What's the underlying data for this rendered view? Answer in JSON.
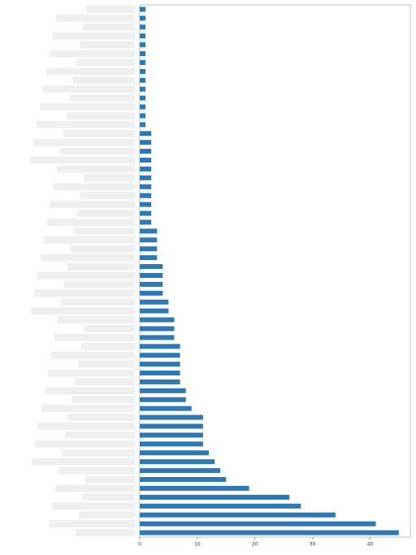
{
  "chart_data": {
    "type": "barh",
    "categories": [
      null,
      null,
      null,
      null,
      null,
      null,
      null,
      null,
      null,
      null,
      null,
      null,
      null,
      null,
      null,
      null,
      null,
      null,
      null,
      null,
      null,
      null,
      null,
      null,
      null,
      null,
      null,
      null,
      null,
      null,
      null,
      null,
      null,
      null,
      null,
      null,
      null,
      null,
      null,
      null,
      null,
      null,
      null,
      null,
      null,
      null,
      null,
      null,
      null,
      null,
      null,
      null,
      null,
      null,
      null,
      null,
      null,
      null,
      null,
      null
    ],
    "values": [
      1,
      1,
      1,
      1,
      1,
      1,
      1,
      1,
      1,
      1,
      1,
      1,
      1,
      1,
      2,
      2,
      2,
      2,
      2,
      2,
      2,
      2,
      2,
      2,
      2,
      3,
      3,
      3,
      3,
      4,
      4,
      4,
      4,
      5,
      5,
      6,
      6,
      6,
      7,
      7,
      7,
      7,
      7,
      8,
      8,
      9,
      11,
      11,
      11,
      11,
      12,
      13,
      14,
      15,
      19,
      26,
      28,
      34,
      41,
      45
    ],
    "color": "#2e78b4",
    "xlim": [
      0,
      47
    ],
    "xticks": [
      0,
      10,
      20,
      30,
      40
    ]
  }
}
